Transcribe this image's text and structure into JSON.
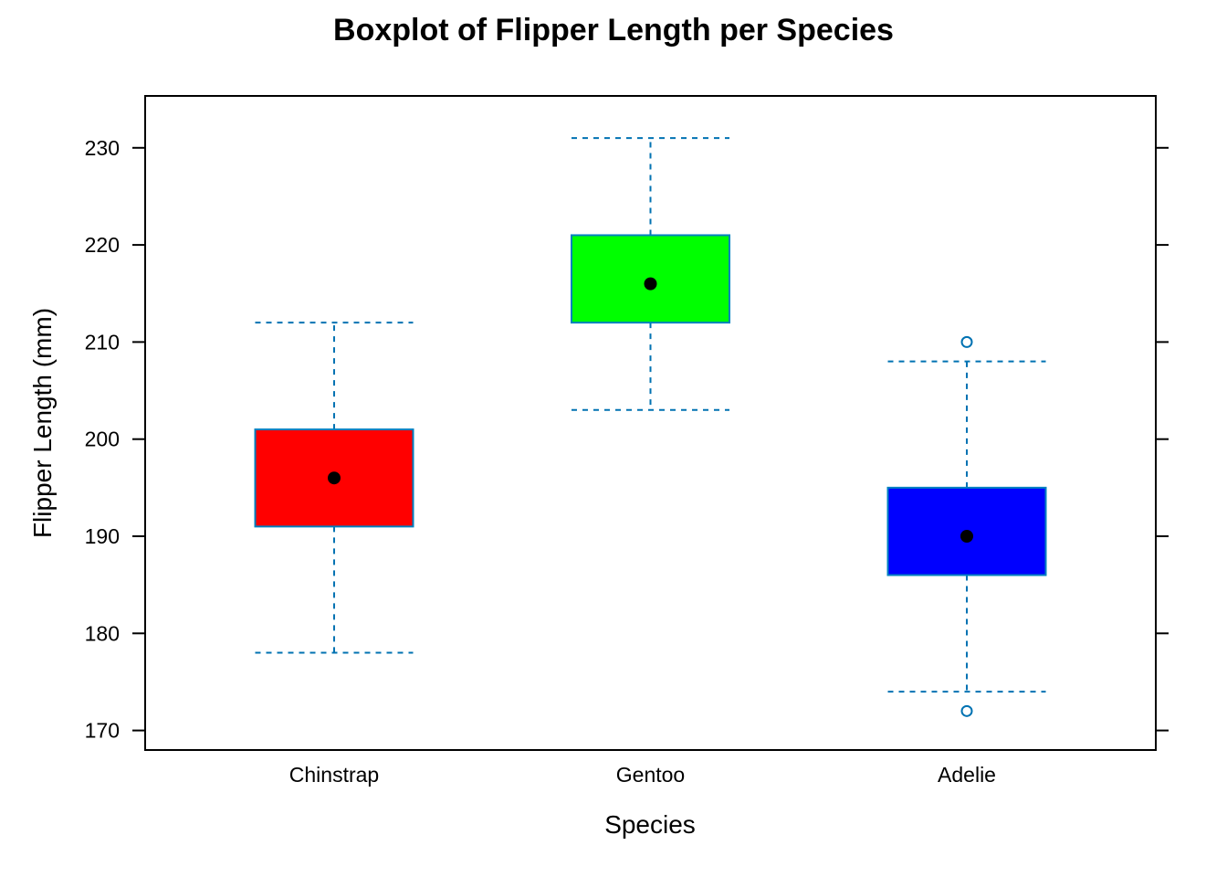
{
  "chart_data": {
    "type": "box",
    "title": "Boxplot of Flipper Length per Species",
    "xlabel": "Species",
    "ylabel": "Flipper Length (mm)",
    "ylim": [
      168,
      235
    ],
    "yticks": [
      170,
      180,
      190,
      200,
      210,
      220,
      230
    ],
    "grid": false,
    "categories": [
      "Chinstrap",
      "Gentoo",
      "Adelie"
    ],
    "boxes": [
      {
        "category": "Chinstrap",
        "whisker_low": 178,
        "q1": 191,
        "median": 196,
        "q3": 201,
        "whisker_high": 212,
        "outliers": [],
        "fill": "#ff0000"
      },
      {
        "category": "Gentoo",
        "whisker_low": 203,
        "q1": 212,
        "median": 216,
        "q3": 221,
        "whisker_high": 231,
        "outliers": [],
        "fill": "#00ff00"
      },
      {
        "category": "Adelie",
        "whisker_low": 174,
        "q1": 186,
        "median": 190,
        "q3": 195,
        "whisker_high": 208,
        "outliers": [
          172,
          210
        ],
        "fill": "#0000ff"
      }
    ],
    "colors": {
      "box_border": "#0080c0",
      "whisker": "#0072b2",
      "median_dot": "#000000",
      "axis": "#000000"
    }
  }
}
